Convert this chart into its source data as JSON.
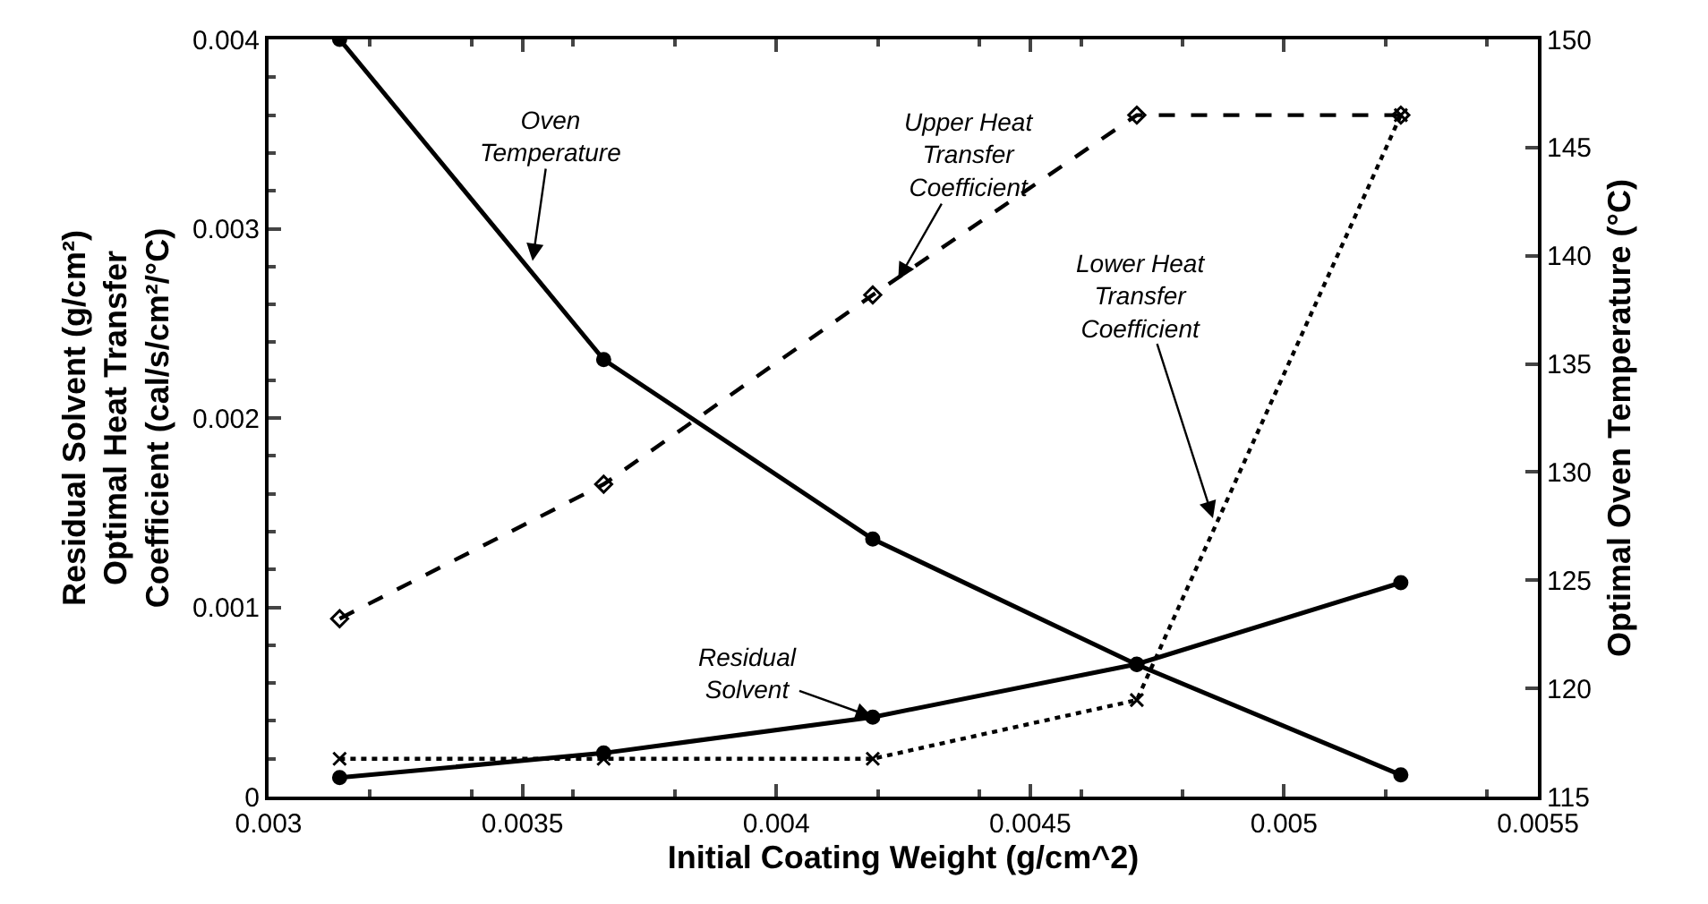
{
  "chart_data": {
    "type": "line",
    "xlabel": "Initial Coating Weight (g/cm^2)",
    "ylabel": "Residual Solvent (g/cm²)\nOptimal Heat Transfer\nCoefficient (cal/s/cm²/°C)",
    "y2label": "Optimal Oven Temperature (°C)",
    "x": [
      0.00314,
      0.00366,
      0.00419,
      0.00471,
      0.00523
    ],
    "xlim": [
      0.003,
      0.0055
    ],
    "xticks": [
      0.003,
      0.0035,
      0.004,
      0.0045,
      0.005,
      0.0055
    ],
    "ylim": [
      0,
      0.004
    ],
    "yticks": [
      0,
      0.001,
      0.002,
      0.003,
      0.004
    ],
    "y2lim": [
      115,
      150
    ],
    "y2ticks": [
      115,
      120,
      125,
      130,
      135,
      140,
      145,
      150
    ],
    "series": [
      {
        "color": "#000000",
        "values": [
          150,
          135.2,
          126.9,
          121.1,
          116.0
        ],
        "axis": "y2",
        "marker": "circle",
        "line_style": "solid"
      },
      {
        "color": "#000000",
        "values": [
          0.0001,
          0.00023,
          0.00042,
          0.0007,
          0.00113
        ],
        "marker": "circle",
        "line_style": "solid"
      },
      {
        "color": "#000000",
        "values": [
          0.00094,
          0.00165,
          0.00265,
          0.0036,
          0.0036
        ],
        "marker": "diamond",
        "line_style": "dashed"
      },
      {
        "color": "#000000",
        "values": [
          0.0002,
          0.0002,
          0.0002,
          0.00051,
          0.0036
        ],
        "marker": "cross",
        "line_style": "dotted"
      }
    ],
    "annotations": [
      {
        "text": "Oven\nTemperature",
        "x": 0.00352,
        "y": 0.00283
      },
      {
        "text": "Upper Heat\nTransfer\nCoefficient",
        "x": 0.00424,
        "y": 0.00273
      },
      {
        "text": "Lower Heat\nTransfer\nCoefficient",
        "x": 0.00486,
        "y": 0.00147
      },
      {
        "text": "Residual\nSolvent",
        "x": 0.00419,
        "y": 0.00042
      }
    ]
  }
}
